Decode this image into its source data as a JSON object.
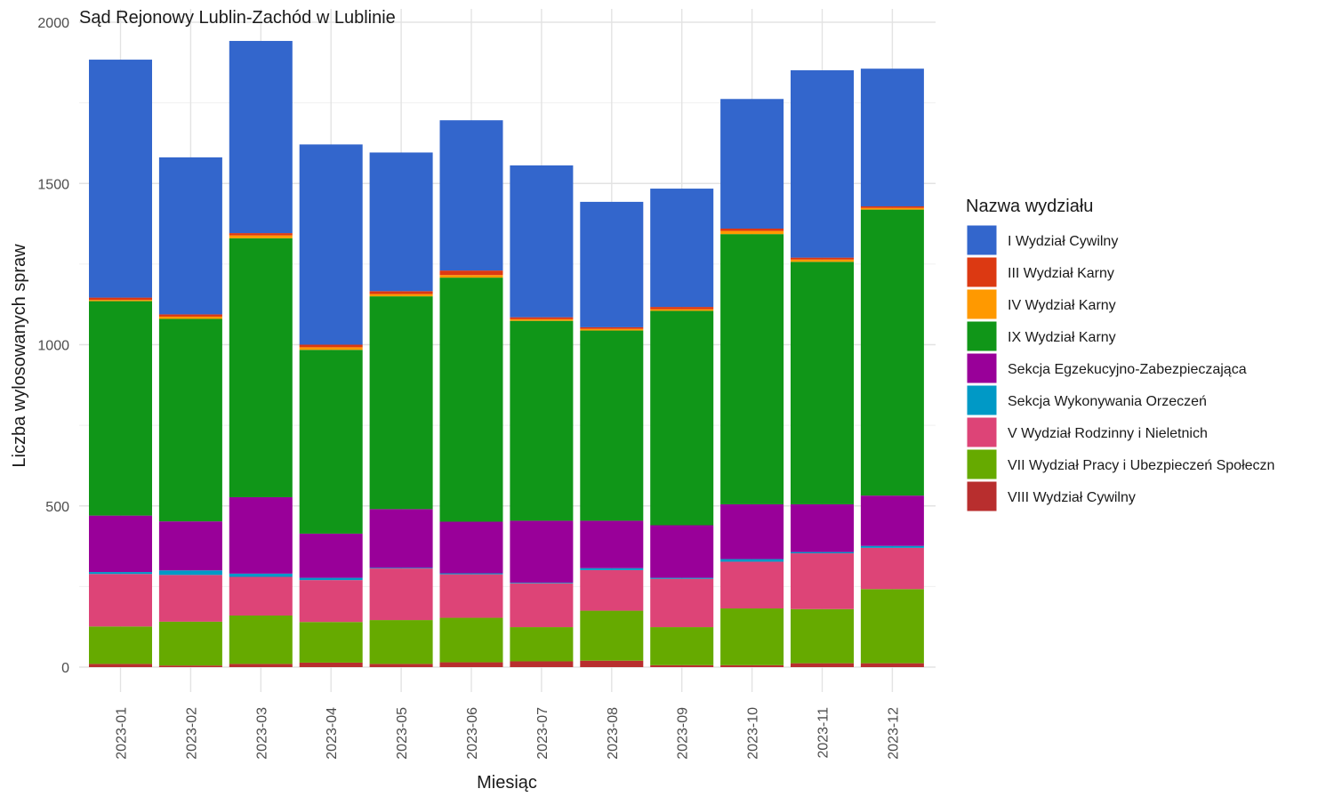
{
  "chart_data": {
    "type": "bar",
    "stacked": true,
    "title": "Sąd Rejonowy Lublin-Zachód w Lublinie",
    "xlabel": "Miesiąc",
    "ylabel": "Liczba wylosowanych spraw",
    "ylim": [
      0,
      2000
    ],
    "yticks": [
      0,
      500,
      1000,
      1500,
      2000
    ],
    "grid": true,
    "legend_title": "Nazwa wydziału",
    "legend_position": "right",
    "categories": [
      "2023-01",
      "2023-02",
      "2023-03",
      "2023-04",
      "2023-05",
      "2023-06",
      "2023-07",
      "2023-08",
      "2023-09",
      "2023-10",
      "2023-11",
      "2023-12"
    ],
    "series": [
      {
        "name": "VIII Wydział Cywilny",
        "color": "#B82E2E",
        "values": [
          10,
          5,
          10,
          14,
          10,
          15,
          18,
          20,
          6,
          6,
          12,
          12
        ]
      },
      {
        "name": "VII Wydział Pracy i Ubezpieczeń Społeczn",
        "color": "#66AA00",
        "values": [
          116,
          136,
          150,
          126,
          136,
          138,
          106,
          155,
          118,
          176,
          168,
          230
        ]
      },
      {
        "name": "V Wydział Rodzinny i Nieletnich",
        "color": "#DD4477",
        "values": [
          163,
          145,
          120,
          130,
          160,
          135,
          136,
          126,
          150,
          145,
          173,
          128
        ]
      },
      {
        "name": "Sekcja Wykonywania Orzeczeń",
        "color": "#0099C6",
        "values": [
          6,
          14,
          10,
          7,
          2,
          3,
          2,
          6,
          3,
          8,
          4,
          6
        ]
      },
      {
        "name": "Sekcja Egzekucyjno-Zabezpieczająca",
        "color": "#990099",
        "values": [
          175,
          152,
          237,
          137,
          182,
          160,
          192,
          147,
          163,
          170,
          148,
          156
        ]
      },
      {
        "name": "IX Wydział Karny",
        "color": "#109618",
        "values": [
          665,
          628,
          803,
          570,
          660,
          757,
          620,
          590,
          665,
          838,
          752,
          887
        ]
      },
      {
        "name": "IV Wydział Karny",
        "color": "#FF9900",
        "values": [
          4,
          7,
          9,
          8,
          7,
          8,
          5,
          5,
          5,
          10,
          7,
          5
        ]
      },
      {
        "name": "III Wydział Karny",
        "color": "#DC3912",
        "values": [
          7,
          7,
          7,
          8,
          9,
          14,
          6,
          5,
          7,
          7,
          6,
          5
        ]
      },
      {
        "name": "I Wydział Cywilny",
        "color": "#3366CC",
        "values": [
          738,
          487,
          596,
          621,
          430,
          466,
          471,
          389,
          367,
          402,
          581,
          427
        ]
      }
    ],
    "legend_order": [
      "I Wydział Cywilny",
      "III Wydział Karny",
      "IV Wydział Karny",
      "IX Wydział Karny",
      "Sekcja Egzekucyjno-Zabezpieczająca",
      "Sekcja Wykonywania Orzeczeń",
      "V Wydział Rodzinny i Nieletnich",
      "VII Wydział Pracy i Ubezpieczeń Społeczn",
      "VIII Wydział Cywilny"
    ]
  }
}
